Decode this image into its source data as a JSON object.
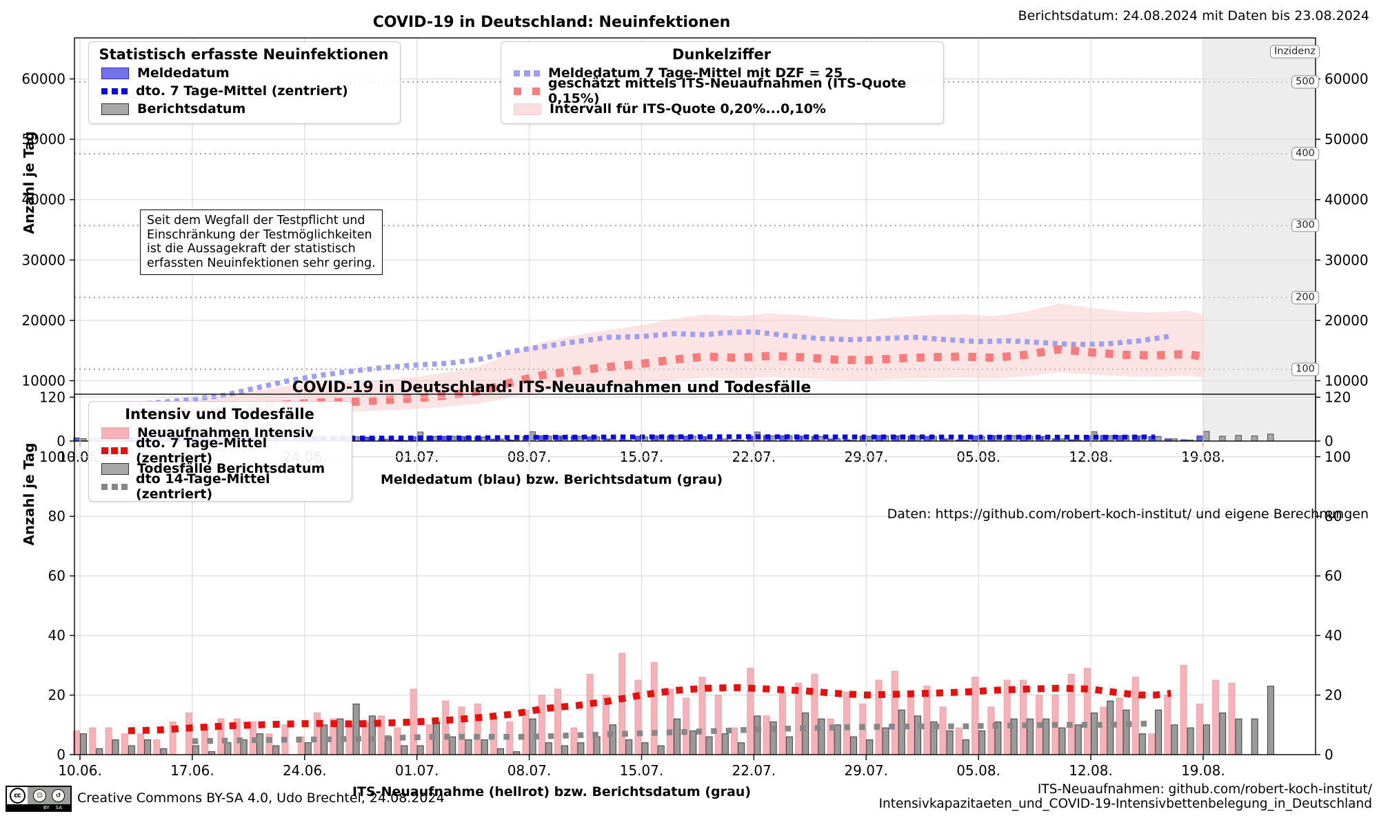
{
  "header": {
    "report_note": "Berichtsdatum: 24.08.2024 mit Daten bis 23.08.2024"
  },
  "chart1": {
    "title": "COVID-19 in Deutschland: Neuinfektionen",
    "ylabel": "Anzahl je Tag",
    "xlabel": "Meldedatum (blau) bzw. Berichtsdatum (grau)",
    "incidence_axis_title": "Inzidenz",
    "annotation": "Seit dem Wegfall der Testpflicht und\nEinschränkung der Testmöglichkeiten\nist die Aussagekraft der statistisch\nerfassten Neuinfektionen sehr gering.",
    "legend_stat": {
      "title": "Statistisch erfasste Neuinfektionen",
      "items": [
        "Meldedatum",
        "dto. 7 Tage-Mittel (zentriert)",
        "Berichtsdatum"
      ]
    },
    "legend_dark": {
      "title": "Dunkelziffer",
      "items": [
        "Meldedatum 7 Tage-Mittel mit DZF = 25",
        "geschätzt mittels ITS-Neuaufnahmen (ITS-Quote 0,15%)",
        "Intervall für ITS-Quote 0,20%...0,10%"
      ]
    }
  },
  "between": {
    "data_source": "Daten: https://github.com/robert-koch-institut/ und eigene Berechnungen"
  },
  "chart2": {
    "title": "COVID-19 in Deutschland: ITS-Neuaufnahmen und Todesfälle",
    "ylabel": "Anzahl je Tag",
    "xlabel": "ITS-Neuaufnahme (hellrot) bzw. Berichtsdatum (grau)",
    "legend": {
      "title": "Intensiv und Todesfälle",
      "items": [
        "Neuaufnahmen Intensiv",
        "dto. 7 Tage-Mittel (zentriert)",
        "Todesfälle Berichtsdatum",
        "dto 14-Tage-Mittel (zentriert)"
      ]
    }
  },
  "footer": {
    "license": "Creative Commons BY-SA 4.0, Udo Brechtel, 24.08.2024",
    "cc": "cc",
    "by": "BY",
    "sa": "SA",
    "sa_glyph": "↺",
    "source": "ITS-Neuaufnahmen: github.com/robert-koch-institut/\nIntensivkapazitaeten_und_COVID-19-Intensivbettenbelegung_in_Deutschland"
  },
  "chart_data": [
    {
      "type": "bar+line",
      "title": "COVID-19 in Deutschland: Neuinfektionen",
      "x_start_date": "10.06.",
      "x_days": 77,
      "data_days": 75,
      "x_tick_labels": [
        "10.06.",
        "17.06.",
        "24.06.",
        "01.07.",
        "08.07.",
        "15.07.",
        "22.07.",
        "29.07.",
        "05.08.",
        "12.08.",
        "19.08."
      ],
      "x_tick_days": [
        0,
        7,
        14,
        21,
        28,
        35,
        42,
        49,
        56,
        63,
        70
      ],
      "ylim": [
        0,
        66800
      ],
      "y_ticks": [
        0,
        10000,
        20000,
        30000,
        40000,
        50000,
        60000
      ],
      "incidence_lines": {
        "values": [
          100,
          200,
          300,
          400,
          500
        ],
        "cases_per_unit": 119,
        "labels": [
          "100",
          "200",
          "300",
          "400",
          "500"
        ]
      },
      "shaded_future_from_day": 70,
      "colors": {
        "meldedatum_bar": "#6262e0",
        "meldedatum_edge": "#2222bb",
        "berichtsdatum_bar": "#a6a6a6",
        "berichtsdatum_edge": "#4d4d4d",
        "mean7_line": "#0a0adc",
        "dzf_line": "#9f9fef",
        "its_estimate_line": "#f97c7c",
        "interval_band": "rgba(249,201,201,0.5)",
        "shade": "rgba(223,223,223,0.55)"
      },
      "series": [
        {
          "name": "meldedatum_bars",
          "values": [
            520,
            600,
            640,
            600,
            540,
            260,
            150,
            610,
            700,
            690,
            650,
            590,
            280,
            160,
            650,
            760,
            740,
            700,
            640,
            300,
            170,
            700,
            800,
            780,
            730,
            670,
            320,
            180,
            750,
            860,
            820,
            780,
            700,
            330,
            190,
            780,
            880,
            850,
            800,
            720,
            340,
            200,
            800,
            900,
            870,
            820,
            740,
            350,
            200,
            810,
            900,
            870,
            820,
            740,
            350,
            200,
            820,
            920,
            880,
            830,
            750,
            360,
            210,
            830,
            930,
            890,
            840,
            760,
            360,
            210,
            840
          ]
        },
        {
          "name": "berichtsdatum_bars",
          "values": [
            400,
            560,
            620,
            610,
            560,
            300,
            100,
            500,
            660,
            700,
            660,
            600,
            320,
            110,
            560,
            720,
            760,
            710,
            650,
            330,
            120,
            1500,
            760,
            800,
            740,
            680,
            340,
            130,
            1550,
            820,
            840,
            790,
            710,
            350,
            140,
            700,
            840,
            870,
            810,
            730,
            350,
            150,
            1500,
            860,
            890,
            830,
            750,
            360,
            150,
            740,
            870,
            890,
            830,
            750,
            360,
            160,
            760,
            890,
            900,
            840,
            760,
            370,
            160,
            1550,
            900,
            910,
            850,
            770,
            370,
            170,
            1600,
            800,
            950,
            850,
            1150
          ]
        },
        {
          "name": "meldedatum_7t_mittel",
          "anchors": [
            [
              3,
              250
            ],
            [
              7,
              275
            ],
            [
              10,
              330
            ],
            [
              14,
              480
            ],
            [
              18,
              500
            ],
            [
              21,
              510
            ],
            [
              25,
              545
            ],
            [
              28,
              620
            ],
            [
              31,
              660
            ],
            [
              35,
              692
            ],
            [
              38,
              712
            ],
            [
              42,
              724
            ],
            [
              45,
              700
            ],
            [
              49,
              676
            ],
            [
              52,
              688
            ],
            [
              56,
              660
            ],
            [
              60,
              652
            ],
            [
              63,
              640
            ],
            [
              65,
              656
            ],
            [
              67,
              690
            ]
          ]
        },
        {
          "name": "dzf_7t_mittel_x25",
          "anchors": [
            [
              3,
              6000
            ],
            [
              5,
              6400
            ],
            [
              7,
              6900
            ],
            [
              9,
              7600
            ],
            [
              11,
              8800
            ],
            [
              13,
              10000
            ],
            [
              15,
              10900
            ],
            [
              17,
              11600
            ],
            [
              19,
              12200
            ],
            [
              21,
              12600
            ],
            [
              23,
              12900
            ],
            [
              25,
              13600
            ],
            [
              27,
              14900
            ],
            [
              29,
              15700
            ],
            [
              31,
              16500
            ],
            [
              33,
              17200
            ],
            [
              35,
              17300
            ],
            [
              37,
              17800
            ],
            [
              39,
              17600
            ],
            [
              40,
              17900
            ],
            [
              42,
              18100
            ],
            [
              44,
              17500
            ],
            [
              46,
              17000
            ],
            [
              48,
              16800
            ],
            [
              50,
              17000
            ],
            [
              52,
              17200
            ],
            [
              54,
              16800
            ],
            [
              56,
              16500
            ],
            [
              58,
              16600
            ],
            [
              60,
              16300
            ],
            [
              62,
              16000
            ],
            [
              64,
              16100
            ],
            [
              66,
              16600
            ],
            [
              68,
              17400
            ]
          ]
        },
        {
          "name": "its_estimate_quote_0_15",
          "anchors": [
            [
              3,
              4000
            ],
            [
              5,
              4400
            ],
            [
              7,
              4800
            ],
            [
              9,
              5100
            ],
            [
              11,
              5600
            ],
            [
              13,
              6100
            ],
            [
              15,
              6400
            ],
            [
              17,
              6500
            ],
            [
              19,
              6800
            ],
            [
              21,
              7100
            ],
            [
              23,
              7600
            ],
            [
              25,
              8300
            ],
            [
              27,
              9800
            ],
            [
              29,
              11000
            ],
            [
              31,
              11700
            ],
            [
              33,
              12300
            ],
            [
              35,
              12800
            ],
            [
              37,
              13500
            ],
            [
              39,
              14000
            ],
            [
              41,
              13800
            ],
            [
              43,
              14100
            ],
            [
              45,
              13900
            ],
            [
              47,
              13500
            ],
            [
              49,
              13400
            ],
            [
              51,
              13700
            ],
            [
              53,
              13900
            ],
            [
              55,
              14000
            ],
            [
              57,
              13800
            ],
            [
              59,
              14300
            ],
            [
              61,
              15200
            ],
            [
              63,
              14700
            ],
            [
              65,
              14300
            ],
            [
              67,
              14200
            ],
            [
              69,
              14400
            ],
            [
              70,
              14000
            ]
          ]
        },
        {
          "name": "interval_band_quote_0_20_to_0_10",
          "from": "its_estimate_quote_0_15",
          "mult_low": 0.75,
          "mult_high": 1.5
        }
      ]
    },
    {
      "type": "bar+line",
      "title": "COVID-19 in Deutschland: ITS-Neuaufnahmen und Todesfälle",
      "x_start_date": "10.06.",
      "x_days": 77,
      "data_days": 75,
      "x_tick_labels": [
        "10.06.",
        "17.06.",
        "24.06.",
        "01.07.",
        "08.07.",
        "15.07.",
        "22.07.",
        "29.07.",
        "05.08.",
        "12.08.",
        "19.08."
      ],
      "x_tick_days": [
        0,
        7,
        14,
        21,
        28,
        35,
        42,
        49,
        56,
        63,
        70
      ],
      "ylim": [
        0,
        121
      ],
      "y_ticks": [
        0,
        20,
        40,
        60,
        80,
        100,
        120
      ],
      "colors": {
        "its_bar": "#f6b2b7",
        "its_edge": "#eda2a8",
        "death_bar": "#9a9a9a",
        "death_edge": "#3d3d3d",
        "its_mean_line": "#e8100c",
        "death_mean_line": "#878787"
      },
      "series": [
        {
          "name": "its_neuaufnahmen_bars",
          "values": [
            8,
            9,
            9,
            7,
            7,
            5,
            11,
            14,
            10,
            12,
            12,
            11,
            7,
            10,
            6,
            14,
            12,
            10,
            11,
            13,
            9,
            22,
            10,
            18,
            16,
            17,
            13,
            11,
            15,
            20,
            22,
            9,
            27,
            20,
            34,
            25,
            31,
            22,
            19,
            26,
            20,
            9,
            29,
            13,
            21,
            24,
            27,
            12,
            21,
            17,
            25,
            28,
            20,
            23,
            16,
            9,
            26,
            16,
            25,
            25,
            20,
            20,
            27,
            29,
            16,
            19,
            26,
            7,
            20,
            30,
            17,
            25,
            24,
            0,
            0
          ]
        },
        {
          "name": "todesfaelle_bars",
          "values": [
            7,
            2,
            5,
            3,
            5,
            2,
            0,
            3,
            1,
            4,
            5,
            7,
            3,
            0,
            4,
            10,
            12,
            17,
            13,
            6,
            3,
            3,
            11,
            6,
            5,
            5,
            2,
            1,
            12,
            4,
            3,
            4,
            6,
            10,
            5,
            4,
            3,
            12,
            8,
            6,
            7,
            4,
            13,
            11,
            6,
            14,
            12,
            10,
            6,
            5,
            9,
            15,
            13,
            11,
            8,
            5,
            8,
            11,
            12,
            12,
            12,
            9,
            10,
            14,
            18,
            15,
            7,
            15,
            10,
            9,
            10,
            14,
            12,
            12,
            23
          ]
        },
        {
          "name": "its_7t_mittel",
          "anchors": [
            [
              3,
              8
            ],
            [
              5,
              8.3
            ],
            [
              7,
              9
            ],
            [
              9,
              9.6
            ],
            [
              11,
              10
            ],
            [
              13,
              10.3
            ],
            [
              15,
              10.5
            ],
            [
              17,
              10.3
            ],
            [
              19,
              10.6
            ],
            [
              21,
              11
            ],
            [
              23,
              11.6
            ],
            [
              25,
              12.5
            ],
            [
              27,
              13.6
            ],
            [
              29,
              15.5
            ],
            [
              31,
              16.5
            ],
            [
              33,
              18
            ],
            [
              35,
              20
            ],
            [
              37,
              21.5
            ],
            [
              39,
              22.3
            ],
            [
              41,
              22.5
            ],
            [
              43,
              22
            ],
            [
              45,
              21.5
            ],
            [
              47,
              20.6
            ],
            [
              49,
              20
            ],
            [
              51,
              20.3
            ],
            [
              53,
              20.6
            ],
            [
              55,
              21
            ],
            [
              57,
              21.6
            ],
            [
              59,
              22
            ],
            [
              61,
              22.3
            ],
            [
              63,
              22
            ],
            [
              65,
              20.6
            ],
            [
              66,
              20
            ],
            [
              67,
              20
            ],
            [
              68,
              20.6
            ]
          ]
        },
        {
          "name": "todesfaelle_14t_mittel",
          "anchors": [
            [
              7,
              4.5
            ],
            [
              10,
              4.8
            ],
            [
              13,
              5
            ],
            [
              16,
              5.2
            ],
            [
              19,
              5.5
            ],
            [
              22,
              6
            ],
            [
              25,
              6
            ],
            [
              28,
              6
            ],
            [
              31,
              6.5
            ],
            [
              34,
              7
            ],
            [
              37,
              7.5
            ],
            [
              40,
              8
            ],
            [
              43,
              8.6
            ],
            [
              46,
              9
            ],
            [
              49,
              9.3
            ],
            [
              52,
              9.5
            ],
            [
              55,
              9.5
            ],
            [
              58,
              9.8
            ],
            [
              61,
              10
            ],
            [
              64,
              10
            ],
            [
              67,
              10.5
            ]
          ]
        }
      ]
    }
  ]
}
